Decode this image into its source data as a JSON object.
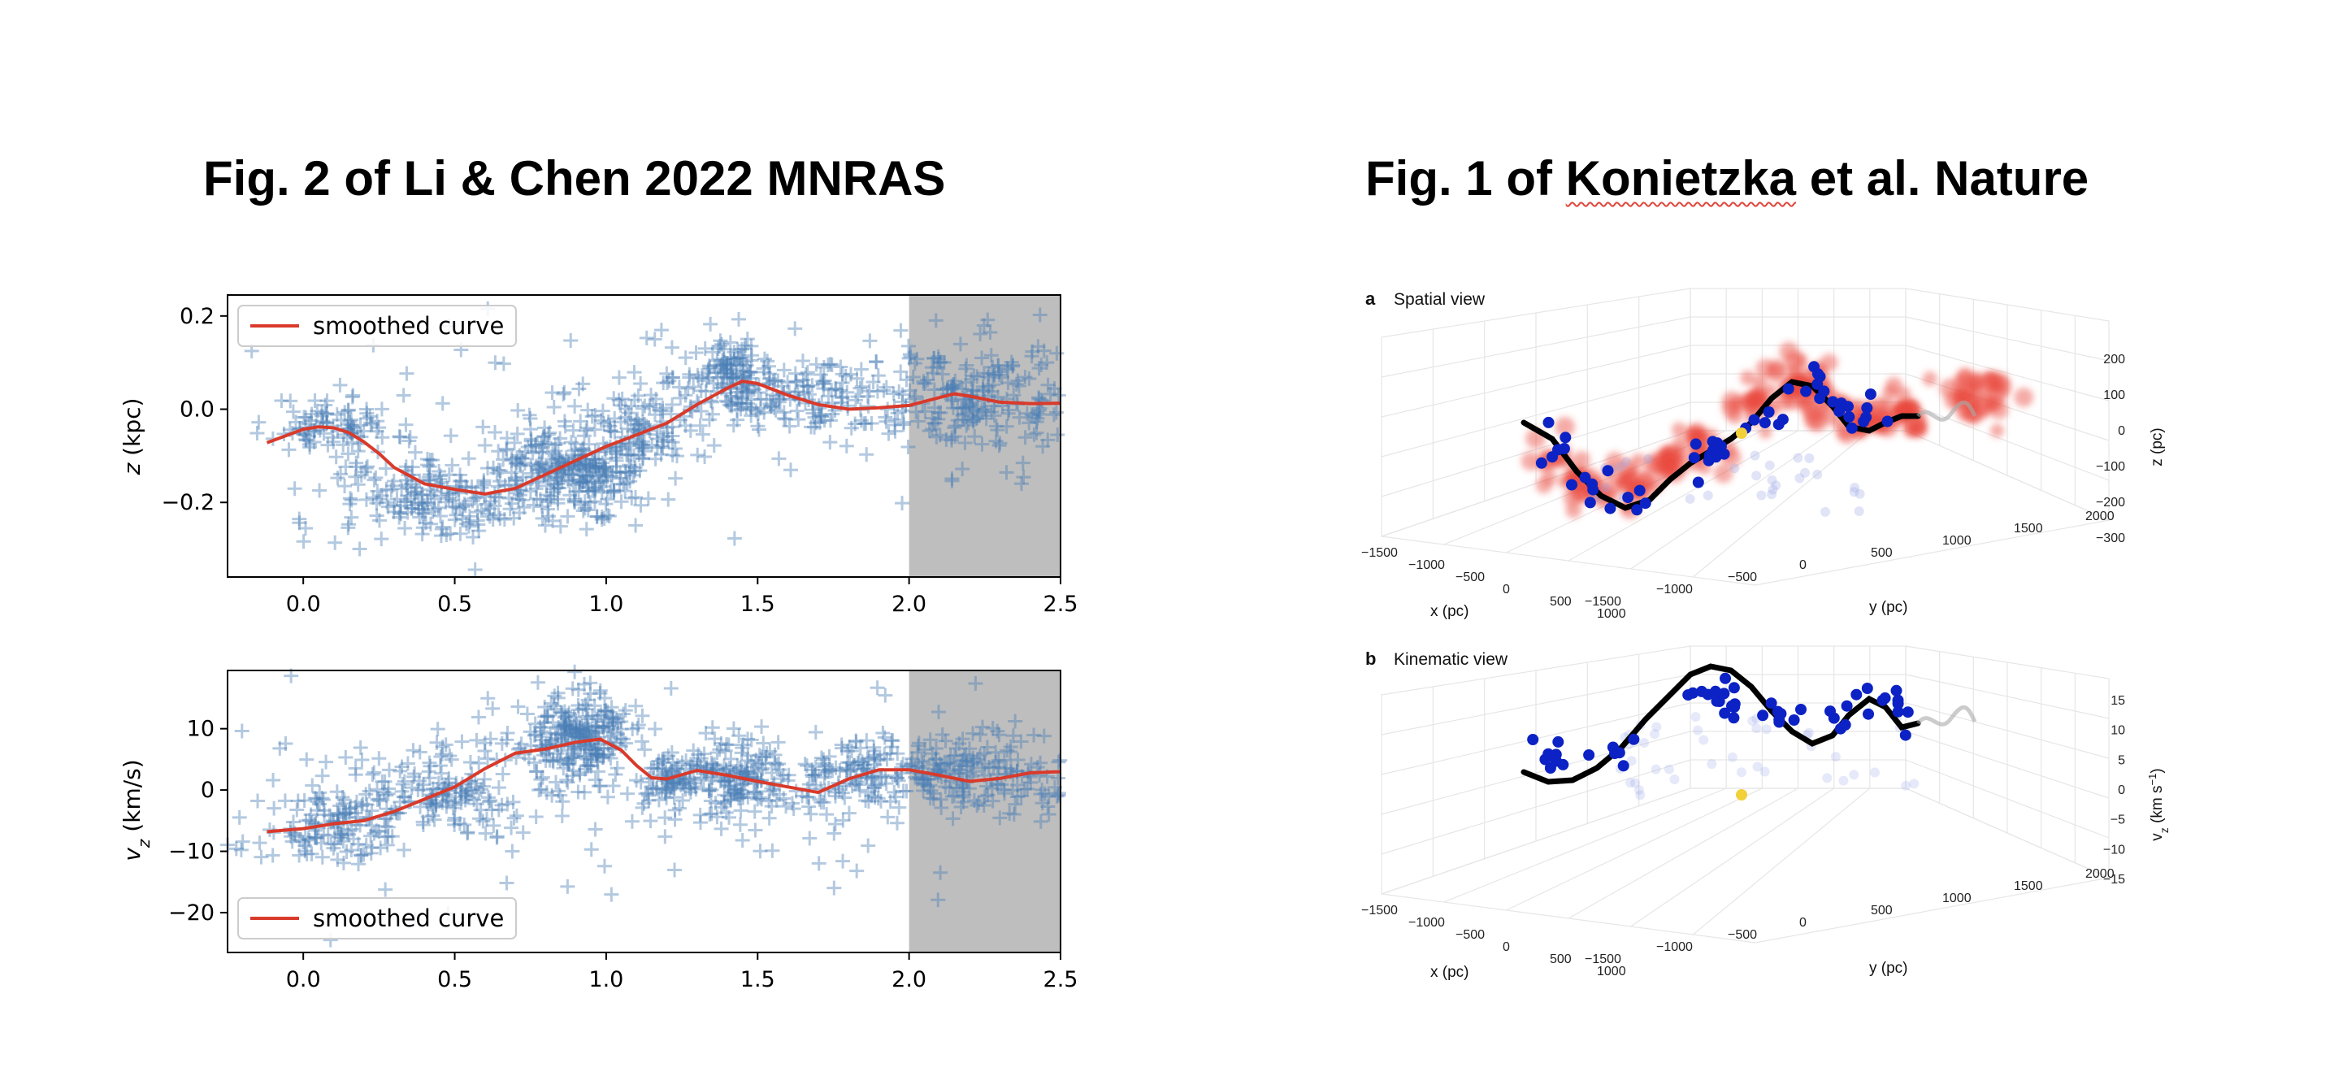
{
  "titles": {
    "left": "Fig. 2 of Li & Chen 2022 MNRAS",
    "right_prefix": "Fig. 1 of ",
    "right_name": "Konietzka",
    "right_suffix": " et al. Nature"
  },
  "colors": {
    "scatter": "#4a7fb5",
    "curve": "#d93a2b",
    "shade": "#bebebe",
    "blue_dot": "#0c22c4",
    "red_blob": "#e8463a",
    "yellow_dot": "#f2d03a"
  },
  "chart_data": [
    {
      "id": "z-plot",
      "type": "scatter",
      "xlabel": "",
      "ylabel_var": "z",
      "ylabel_unit": " (kpc)",
      "xlim": [
        -0.25,
        2.5
      ],
      "ylim": [
        -0.36,
        0.245
      ],
      "xticks": [
        0.0,
        0.5,
        1.0,
        1.5,
        2.0,
        2.5
      ],
      "xtick_labels": [
        "0.0",
        "0.5",
        "1.0",
        "1.5",
        "2.0",
        "2.5"
      ],
      "yticks": [
        -0.2,
        0.0,
        0.2
      ],
      "ytick_labels": [
        "−0.2",
        "0.0",
        "0.2"
      ],
      "shaded_region": [
        2.0,
        2.5
      ],
      "legend": {
        "label": "smoothed curve",
        "position": "upper left"
      },
      "smoothed_curve": {
        "x": [
          -0.12,
          -0.05,
          0.0,
          0.05,
          0.1,
          0.15,
          0.2,
          0.25,
          0.3,
          0.4,
          0.5,
          0.6,
          0.7,
          0.8,
          0.9,
          1.0,
          1.1,
          1.2,
          1.3,
          1.4,
          1.45,
          1.5,
          1.6,
          1.7,
          1.8,
          1.9,
          2.0,
          2.1,
          2.15,
          2.2,
          2.3,
          2.4,
          2.5
        ],
        "y": [
          -0.072,
          -0.055,
          -0.043,
          -0.038,
          -0.04,
          -0.05,
          -0.07,
          -0.095,
          -0.125,
          -0.16,
          -0.172,
          -0.182,
          -0.17,
          -0.14,
          -0.11,
          -0.08,
          -0.055,
          -0.03,
          0.01,
          0.045,
          0.06,
          0.055,
          0.03,
          0.01,
          0.0,
          0.003,
          0.008,
          0.025,
          0.033,
          0.028,
          0.015,
          0.012,
          0.013
        ]
      },
      "scatter_clusters": [
        {
          "cx": 0.1,
          "cy": -0.03,
          "sx": 0.1,
          "sy": 0.03,
          "n": 90,
          "seed": 11
        },
        {
          "cx": 0.45,
          "cy": -0.19,
          "sx": 0.18,
          "sy": 0.05,
          "n": 200,
          "seed": 12
        },
        {
          "cx": 0.9,
          "cy": -0.13,
          "sx": 0.13,
          "sy": 0.05,
          "n": 300,
          "seed": 13
        },
        {
          "cx": 1.15,
          "cy": -0.03,
          "sx": 0.1,
          "sy": 0.05,
          "n": 90,
          "seed": 14
        },
        {
          "cx": 1.42,
          "cy": 0.09,
          "sx": 0.05,
          "sy": 0.04,
          "n": 90,
          "seed": 15
        },
        {
          "cx": 1.6,
          "cy": 0.03,
          "sx": 0.18,
          "sy": 0.04,
          "n": 170,
          "seed": 16
        },
        {
          "cx": 2.2,
          "cy": 0.02,
          "sx": 0.18,
          "sy": 0.06,
          "n": 240,
          "seed": 17
        },
        {
          "cx": 1.0,
          "cy": -0.02,
          "sx": 0.8,
          "sy": 0.13,
          "n": 90,
          "seed": 18
        }
      ]
    },
    {
      "id": "vz-plot",
      "type": "scatter",
      "xlabel": "",
      "ylabel_var": "v",
      "ylabel_sub": "z",
      "ylabel_unit": " (km/s)",
      "xlim": [
        -0.25,
        2.5
      ],
      "ylim": [
        -26.5,
        19.5
      ],
      "xticks": [
        0.0,
        0.5,
        1.0,
        1.5,
        2.0,
        2.5
      ],
      "xtick_labels": [
        "0.0",
        "0.5",
        "1.0",
        "1.5",
        "2.0",
        "2.5"
      ],
      "yticks": [
        -20,
        -10,
        0,
        10
      ],
      "ytick_labels": [
        "−20",
        "−10",
        "0",
        "10"
      ],
      "shaded_region": [
        2.0,
        2.5
      ],
      "legend": {
        "label": "smoothed curve",
        "position": "lower left"
      },
      "smoothed_curve": {
        "x": [
          -0.12,
          0.0,
          0.1,
          0.2,
          0.3,
          0.4,
          0.5,
          0.6,
          0.7,
          0.8,
          0.9,
          0.98,
          1.05,
          1.1,
          1.15,
          1.2,
          1.3,
          1.4,
          1.5,
          1.6,
          1.7,
          1.8,
          1.9,
          2.0,
          2.1,
          2.2,
          2.3,
          2.4,
          2.5
        ],
        "y": [
          -6.8,
          -6.3,
          -5.5,
          -5.0,
          -3.5,
          -1.5,
          0.5,
          3.5,
          6.0,
          6.7,
          7.8,
          8.3,
          6.5,
          4.0,
          2.0,
          1.8,
          3.2,
          2.4,
          1.4,
          0.5,
          -0.4,
          1.8,
          3.3,
          3.3,
          2.4,
          1.4,
          1.9,
          2.8,
          3.0
        ]
      },
      "scatter_clusters": [
        {
          "cx": 0.1,
          "cy": -7.0,
          "sx": 0.12,
          "sy": 3.0,
          "n": 120,
          "seed": 21
        },
        {
          "cx": 0.45,
          "cy": -0.5,
          "sx": 0.15,
          "sy": 3.5,
          "n": 170,
          "seed": 22
        },
        {
          "cx": 0.9,
          "cy": 8.5,
          "sx": 0.09,
          "sy": 3.5,
          "n": 260,
          "seed": 23
        },
        {
          "cx": 1.2,
          "cy": 1.0,
          "sx": 0.05,
          "sy": 2.5,
          "n": 80,
          "seed": 24
        },
        {
          "cx": 1.42,
          "cy": 2.0,
          "sx": 0.08,
          "sy": 3.0,
          "n": 130,
          "seed": 25
        },
        {
          "cx": 1.75,
          "cy": 2.0,
          "sx": 0.18,
          "sy": 3.0,
          "n": 170,
          "seed": 26
        },
        {
          "cx": 2.2,
          "cy": 3.0,
          "sx": 0.18,
          "sy": 3.5,
          "n": 200,
          "seed": 27
        },
        {
          "cx": 1.2,
          "cy": 0.0,
          "sx": 0.8,
          "sy": 10.0,
          "n": 110,
          "seed": 28
        }
      ]
    },
    {
      "id": "spatial-view",
      "type": "scatter3d",
      "panel_letter": "a",
      "panel_title": "Spatial view",
      "x_label": "x (pc)",
      "y_label": "y (pc)",
      "z_label": "z (pc)",
      "x_ticks": [
        "−1500",
        "−1000",
        "−500",
        "0",
        "500",
        "1000"
      ],
      "y_ticks": [
        "−1500",
        "−1000",
        "−500",
        "0",
        "500",
        "1000",
        "1500",
        "2000"
      ],
      "z_ticks": [
        "200",
        "100",
        "0",
        "−100",
        "−200",
        "−300"
      ]
    },
    {
      "id": "kinematic-view",
      "type": "scatter3d",
      "panel_letter": "b",
      "panel_title": "Kinematic view",
      "x_label": "x (pc)",
      "y_label": "y (pc)",
      "z_label_var": "v",
      "z_label_sub": "z",
      "z_label_unit": " (km s",
      "z_label_sup": "−1",
      "z_label_close": ")",
      "x_ticks": [
        "−1500",
        "−1000",
        "−500",
        "0",
        "500",
        "1000"
      ],
      "y_ticks": [
        "−1500",
        "−1000",
        "−500",
        "0",
        "500",
        "1000",
        "1500",
        "2000"
      ],
      "z_ticks": [
        "15",
        "10",
        "5",
        "0",
        "−5",
        "−10",
        "−15"
      ]
    }
  ]
}
